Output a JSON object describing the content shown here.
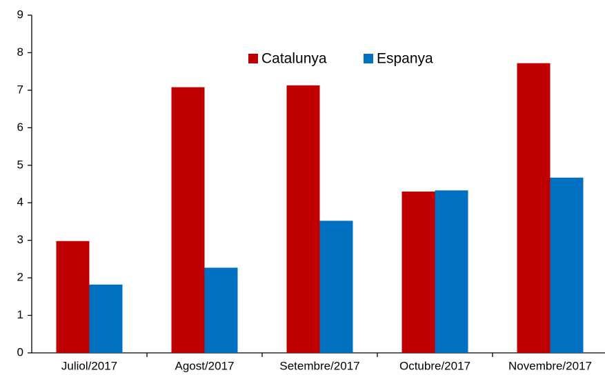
{
  "chart_data": {
    "type": "bar",
    "categories": [
      "Juliol/2017",
      "Agost/2017",
      "Setembre/2017",
      "Octubre/2017",
      "Novembre/2017"
    ],
    "series": [
      {
        "name": "Catalunya",
        "color": "#c00000",
        "values": [
          2.98,
          7.08,
          7.13,
          4.3,
          7.72
        ]
      },
      {
        "name": "Espanya",
        "color": "#0070c0",
        "values": [
          1.82,
          2.27,
          3.52,
          4.33,
          4.67
        ]
      }
    ],
    "ylim": [
      0,
      9
    ],
    "yticks": [
      0,
      1,
      2,
      3,
      4,
      5,
      6,
      7,
      8,
      9
    ],
    "grid": false,
    "legend": "top"
  }
}
